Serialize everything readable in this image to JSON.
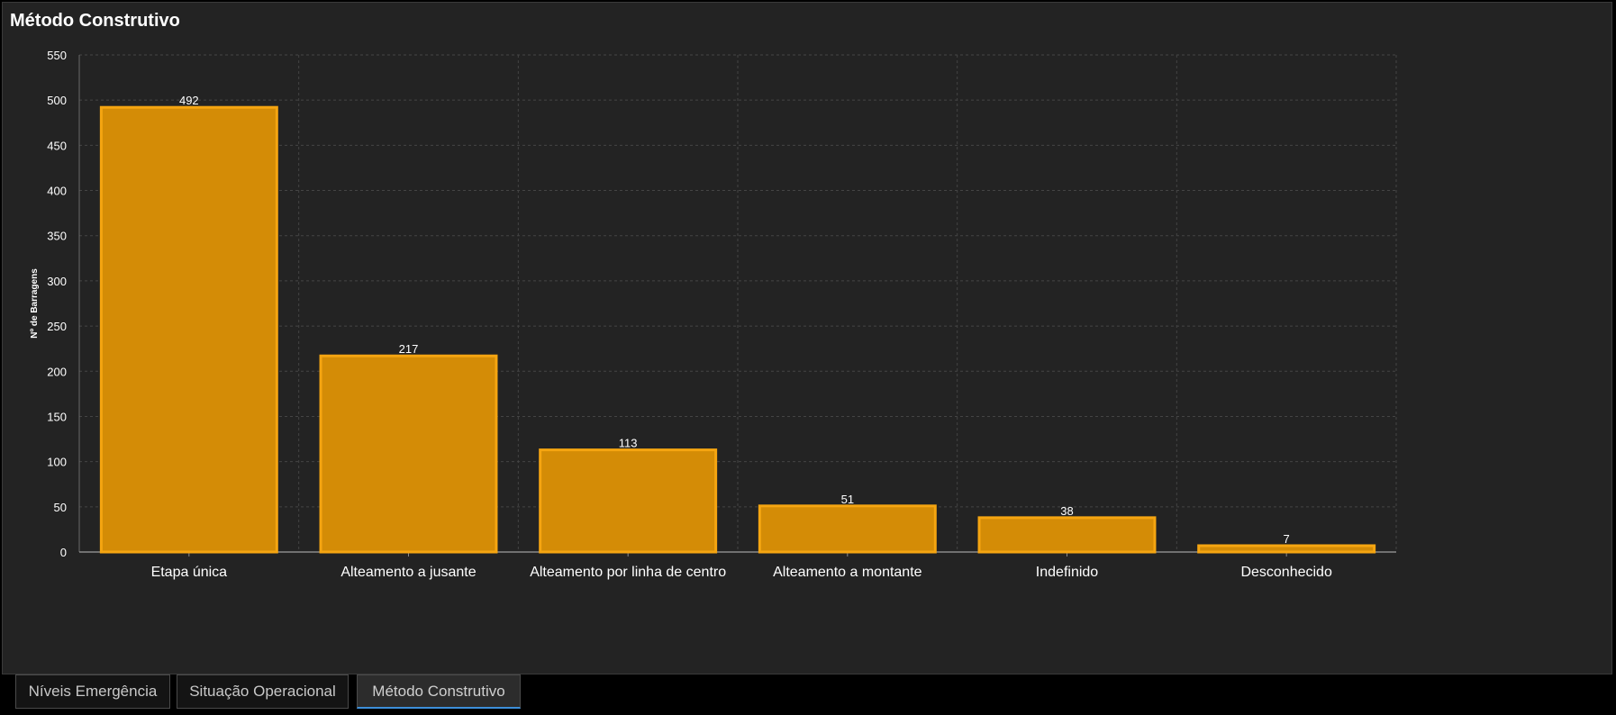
{
  "panel": {
    "title": "Método Construtivo"
  },
  "chart_data": {
    "type": "bar",
    "title": "",
    "xlabel": "",
    "ylabel": "Nº de Barragens",
    "categories": [
      "Etapa única",
      "Alteamento a jusante",
      "Alteamento por linha de centro",
      "Alteamento a montante",
      "Indefinido",
      "Desconhecido"
    ],
    "values": [
      492,
      217,
      113,
      51,
      38,
      7
    ],
    "ylim": [
      0,
      550
    ],
    "yticks": [
      0,
      50,
      100,
      150,
      200,
      250,
      300,
      350,
      400,
      450,
      500,
      550
    ],
    "grid": true,
    "data_labels": true,
    "bar_fill": "#d48c06",
    "bar_stroke": "#f5a511"
  },
  "tabs": [
    {
      "label": "Níveis Emergência",
      "active": false
    },
    {
      "label": "Situação Operacional",
      "active": false
    },
    {
      "label": "Método Construtivo",
      "active": true
    }
  ]
}
